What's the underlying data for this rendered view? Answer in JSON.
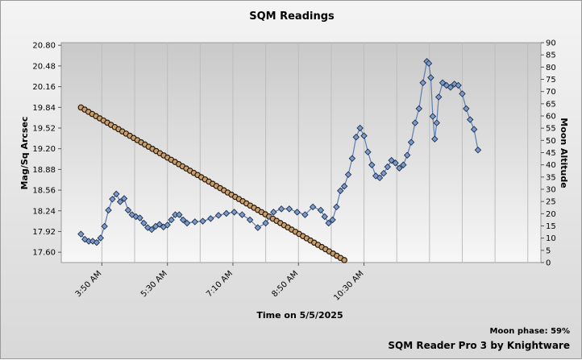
{
  "chart_data": {
    "type": "scatter",
    "title": "SQM Readings",
    "xlabel": "Time on 5/5/2025",
    "ylabel": "Mag/Sq Arcsec",
    "y2label": "Moon Altitude",
    "x_ticks": [
      "3:50 AM",
      "5:30 AM",
      "7:10 AM",
      "8:50 AM",
      "10:30 AM"
    ],
    "x_range_hours": [
      2.8,
      15.0
    ],
    "ylim": [
      17.44,
      20.84
    ],
    "y_ticks": [
      "17.60",
      "17.92",
      "18.24",
      "18.56",
      "18.88",
      "19.20",
      "19.52",
      "19.84",
      "20.16",
      "20.48",
      "20.80"
    ],
    "y2lim": [
      0,
      90
    ],
    "y2_ticks": [
      "0",
      "5",
      "10",
      "15",
      "20",
      "25",
      "30",
      "35",
      "40",
      "45",
      "50",
      "55",
      "60",
      "65",
      "70",
      "75",
      "80",
      "85",
      "90"
    ],
    "grid": true,
    "series": [
      {
        "key": "sqm",
        "color": "#5a7fb8",
        "marker": "diamond",
        "axis": "left",
        "points": [
          [
            3.3,
            17.88
          ],
          [
            3.4,
            17.8
          ],
          [
            3.5,
            17.77
          ],
          [
            3.6,
            17.77
          ],
          [
            3.7,
            17.75
          ],
          [
            3.8,
            17.82
          ],
          [
            3.9,
            18.0
          ],
          [
            4.0,
            18.25
          ],
          [
            4.1,
            18.42
          ],
          [
            4.2,
            18.5
          ],
          [
            4.3,
            18.38
          ],
          [
            4.4,
            18.43
          ],
          [
            4.5,
            18.25
          ],
          [
            4.6,
            18.18
          ],
          [
            4.7,
            18.15
          ],
          [
            4.8,
            18.13
          ],
          [
            4.9,
            18.05
          ],
          [
            5.0,
            17.98
          ],
          [
            5.1,
            17.95
          ],
          [
            5.2,
            18.0
          ],
          [
            5.3,
            18.03
          ],
          [
            5.4,
            17.99
          ],
          [
            5.5,
            18.02
          ],
          [
            5.6,
            18.1
          ],
          [
            5.7,
            18.18
          ],
          [
            5.8,
            18.18
          ],
          [
            5.9,
            18.1
          ],
          [
            6.0,
            18.05
          ],
          [
            6.2,
            18.07
          ],
          [
            6.4,
            18.08
          ],
          [
            6.6,
            18.12
          ],
          [
            6.8,
            18.17
          ],
          [
            7.0,
            18.2
          ],
          [
            7.2,
            18.22
          ],
          [
            7.4,
            18.18
          ],
          [
            7.6,
            18.1
          ],
          [
            7.8,
            17.98
          ],
          [
            8.0,
            18.05
          ],
          [
            8.2,
            18.22
          ],
          [
            8.4,
            18.27
          ],
          [
            8.6,
            18.27
          ],
          [
            8.8,
            18.22
          ],
          [
            9.0,
            18.18
          ],
          [
            9.2,
            18.3
          ],
          [
            9.4,
            18.25
          ],
          [
            9.5,
            18.15
          ],
          [
            9.6,
            18.05
          ],
          [
            9.7,
            18.1
          ],
          [
            9.8,
            18.3
          ],
          [
            9.9,
            18.55
          ],
          [
            10.0,
            18.62
          ],
          [
            10.1,
            18.8
          ],
          [
            10.2,
            19.05
          ],
          [
            10.3,
            19.38
          ],
          [
            10.4,
            19.52
          ],
          [
            10.5,
            19.4
          ],
          [
            10.6,
            19.15
          ],
          [
            10.7,
            18.95
          ],
          [
            10.8,
            18.78
          ],
          [
            10.9,
            18.75
          ],
          [
            11.0,
            18.82
          ],
          [
            11.1,
            18.92
          ],
          [
            11.2,
            19.02
          ],
          [
            11.3,
            18.98
          ],
          [
            11.4,
            18.9
          ],
          [
            11.5,
            18.95
          ],
          [
            11.6,
            19.1
          ],
          [
            11.7,
            19.3
          ],
          [
            11.8,
            19.6
          ],
          [
            11.9,
            19.82
          ],
          [
            12.0,
            20.22
          ],
          [
            12.1,
            20.55
          ],
          [
            12.15,
            20.52
          ],
          [
            12.2,
            20.3
          ],
          [
            12.25,
            19.7
          ],
          [
            12.3,
            19.35
          ],
          [
            12.35,
            19.6
          ],
          [
            12.4,
            20.0
          ],
          [
            12.5,
            20.22
          ],
          [
            12.6,
            20.18
          ],
          [
            12.7,
            20.15
          ],
          [
            12.8,
            20.2
          ],
          [
            12.9,
            20.18
          ],
          [
            13.0,
            20.05
          ],
          [
            13.1,
            19.82
          ],
          [
            13.2,
            19.65
          ],
          [
            13.3,
            19.5
          ],
          [
            13.4,
            19.18
          ]
        ]
      },
      {
        "key": "moon",
        "color": "#c8a070",
        "marker": "circle",
        "axis": "right",
        "from": [
          3.3,
          63.5
        ],
        "to": [
          10.0,
          1.0
        ]
      }
    ]
  },
  "footer": {
    "moon_phase": "Moon phase: 59%",
    "software": "SQM Reader Pro 3 by Knightware"
  }
}
